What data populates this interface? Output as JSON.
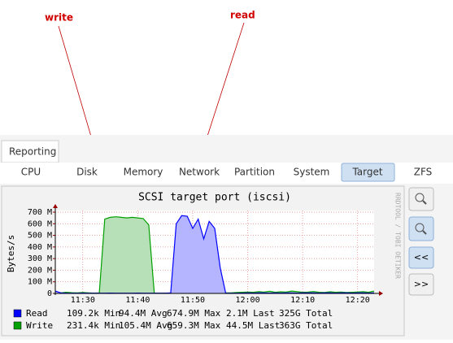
{
  "annotations": [
    "write",
    "read"
  ],
  "panel_tab": "Reporting",
  "tabs": [
    "CPU",
    "Disk",
    "Memory",
    "Network",
    "Partition",
    "System",
    "Target",
    "ZFS"
  ],
  "buttons": [
    "<<",
    ">>"
  ],
  "watermark": "RRDTOOL / TOBI OETIKER",
  "chart_data": {
    "type": "area",
    "title": "SCSI target port (iscsi)",
    "ylabel": "Bytes/s",
    "x": [
      "11:25",
      "11:26",
      "11:27",
      "11:28",
      "11:29",
      "11:30",
      "11:31",
      "11:32",
      "11:33",
      "11:34",
      "11:35",
      "11:36",
      "11:37",
      "11:38",
      "11:39",
      "11:40",
      "11:41",
      "11:42",
      "11:43",
      "11:44",
      "11:45",
      "11:46",
      "11:47",
      "11:48",
      "11:49",
      "11:50",
      "11:51",
      "11:52",
      "11:53",
      "11:54",
      "11:55",
      "11:56",
      "11:57",
      "11:58",
      "11:59",
      "12:00",
      "12:01",
      "12:02",
      "12:03",
      "12:04",
      "12:05",
      "12:06",
      "12:07",
      "12:08",
      "12:09",
      "12:10",
      "12:11",
      "12:12",
      "12:13",
      "12:14",
      "12:15",
      "12:16",
      "12:17",
      "12:18",
      "12:19",
      "12:20",
      "12:21",
      "12:22",
      "12:23"
    ],
    "xticks": [
      "11:30",
      "11:40",
      "11:50",
      "12:00",
      "12:10",
      "12:20"
    ],
    "ylim": [
      0,
      700
    ],
    "yticks": [
      0,
      {
        "value": 100,
        "label": "100 M"
      },
      {
        "value": 200,
        "label": "200 M"
      },
      {
        "value": 300,
        "label": "300 M"
      },
      {
        "value": 400,
        "label": "400 M"
      },
      {
        "value": 500,
        "label": "500 M"
      },
      {
        "value": 600,
        "label": "600 M"
      },
      {
        "value": 700,
        "label": "700 M"
      }
    ],
    "grid": true,
    "series": [
      {
        "name": "Write",
        "color": "#00a000",
        "fill": "#b8e0b8",
        "stats": [
          "231.4k Min",
          "105.4M Avg",
          "659.3M Max",
          "44.5M Last",
          "363G Total"
        ],
        "values": [
          8,
          5,
          10,
          6,
          4,
          8,
          5,
          3,
          5,
          640,
          655,
          660,
          655,
          650,
          655,
          650,
          645,
          590,
          3,
          2,
          3,
          2,
          3,
          4,
          3,
          2,
          3,
          4,
          3,
          5,
          6,
          5,
          4,
          8,
          10,
          12,
          10,
          15,
          12,
          18,
          10,
          14,
          12,
          20,
          15,
          10,
          12,
          16,
          10,
          8,
          14,
          10,
          12,
          8,
          10,
          12,
          15,
          10,
          20
        ]
      },
      {
        "name": "Read",
        "color": "#0000ff",
        "fill": "#b4b4ff",
        "stats": [
          "109.2k Min",
          "94.4M Avg",
          "674.9M Max",
          "2.1M Last",
          "325G Total"
        ],
        "values": [
          20,
          5,
          3,
          2,
          2,
          3,
          2,
          2,
          2,
          2,
          3,
          2,
          2,
          2,
          2,
          3,
          2,
          2,
          2,
          2,
          2,
          5,
          600,
          670,
          665,
          560,
          640,
          470,
          620,
          560,
          220,
          3,
          2,
          2,
          3,
          4,
          3,
          5,
          4,
          3,
          4,
          3,
          5,
          4,
          3,
          4,
          5,
          4,
          3,
          5,
          4,
          3,
          4,
          5,
          3,
          4,
          5,
          3,
          4
        ]
      }
    ]
  }
}
